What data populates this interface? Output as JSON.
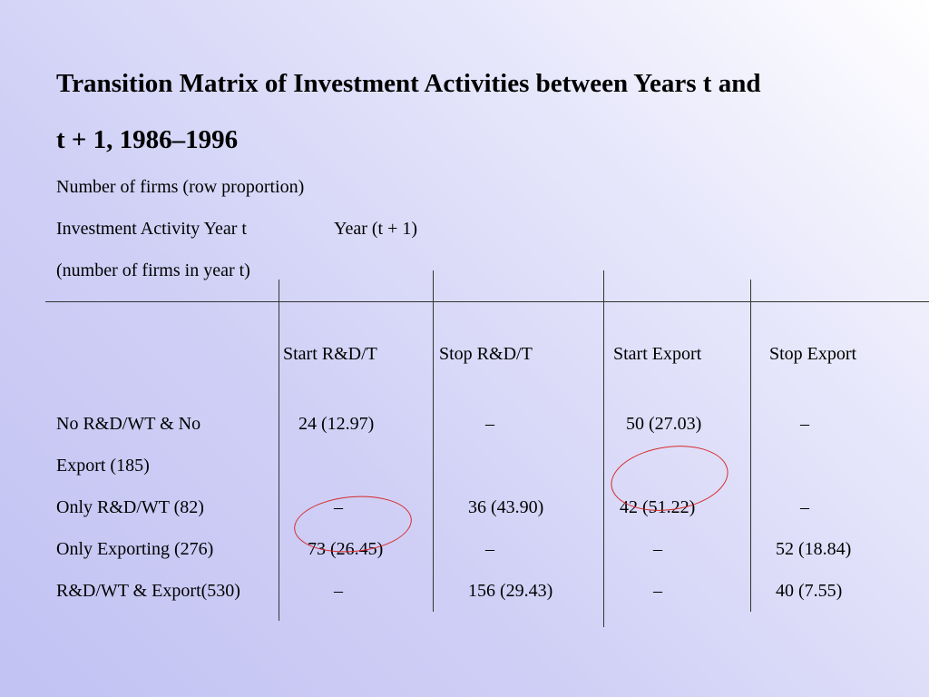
{
  "slide": {
    "title_line1": "Transition Matrix of  Investment Activities between Years t and",
    "title_line2": "t + 1, 1986–1996",
    "subtitle1": "Number of  firms (row proportion)",
    "subtitle2_a": "Investment Activity Year t",
    "subtitle2_b": "Year (t + 1)",
    "subtitle3": "(number of  firms in year t)"
  },
  "table": {
    "columns": [
      "Start R&D/T",
      "Stop R&D/T",
      "Start Export",
      "Stop Export"
    ],
    "rows": [
      {
        "label_line1": "No R&D/WT & No",
        "label_line2": "Export (185)",
        "cells": [
          "24 (12.97)",
          "–",
          "50 (27.03)",
          "–"
        ]
      },
      {
        "label": "Only R&D/WT (82)",
        "cells": [
          "–",
          "36 (43.90)",
          "42 (51.22)",
          "–"
        ]
      },
      {
        "label": "Only Exporting (276)",
        "cells": [
          "73 (26.45)",
          "–",
          "–",
          "52 (18.84)"
        ]
      },
      {
        "label": "R&D/WT & Export(530)",
        "cells": [
          "–",
          "156 (29.43)",
          "–",
          "40 (7.55)"
        ]
      }
    ]
  },
  "annotations": {
    "circle_color": "#d62b2b"
  }
}
